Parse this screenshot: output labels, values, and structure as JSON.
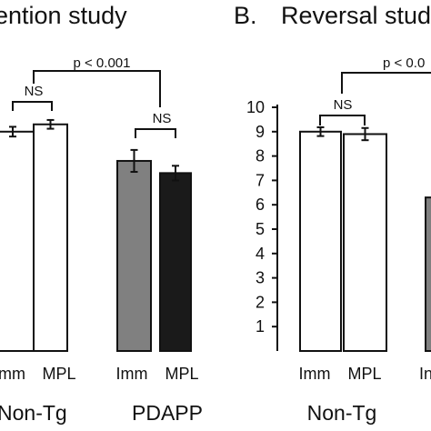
{
  "chart_data": [
    {
      "panel_label": "",
      "title": "ention study",
      "type": "bar",
      "categories": [
        "Imm",
        "MPL",
        "Imm",
        "MPL"
      ],
      "groups": [
        "Non-Tg",
        "PDAPP"
      ],
      "values": [
        9.0,
        9.3,
        7.8,
        7.3
      ],
      "errors": [
        0.2,
        0.18,
        0.45,
        0.3
      ],
      "colors": [
        "#ffffff",
        "#ffffff",
        "#808080",
        "#1a1a1a"
      ],
      "ylim": [
        0,
        10
      ],
      "comparisons": [
        {
          "between": [
            0,
            1
          ],
          "label": "NS"
        },
        {
          "between": [
            2,
            3
          ],
          "label": "NS"
        },
        {
          "between": [
            "Non-Tg",
            "PDAPP"
          ],
          "label": "p < 0.001"
        }
      ]
    },
    {
      "panel_label": "B.",
      "title": "Reversal stud",
      "type": "bar",
      "categories": [
        "Imm",
        "MPL",
        "In"
      ],
      "groups": [
        "Non-Tg"
      ],
      "values": [
        9.0,
        8.9,
        6.3
      ],
      "errors": [
        0.18,
        0.25,
        0
      ],
      "colors": [
        "#ffffff",
        "#ffffff",
        "#808080"
      ],
      "ylim": [
        0,
        10
      ],
      "yticks": [
        "1",
        "2",
        "3",
        "4",
        "5",
        "6",
        "7",
        "8",
        "9",
        "10"
      ],
      "comparisons": [
        {
          "between": [
            0,
            1
          ],
          "label": "NS"
        },
        {
          "between": [
            "Non-Tg",
            "PDAPP"
          ],
          "label": "p < 0.0"
        }
      ]
    }
  ]
}
